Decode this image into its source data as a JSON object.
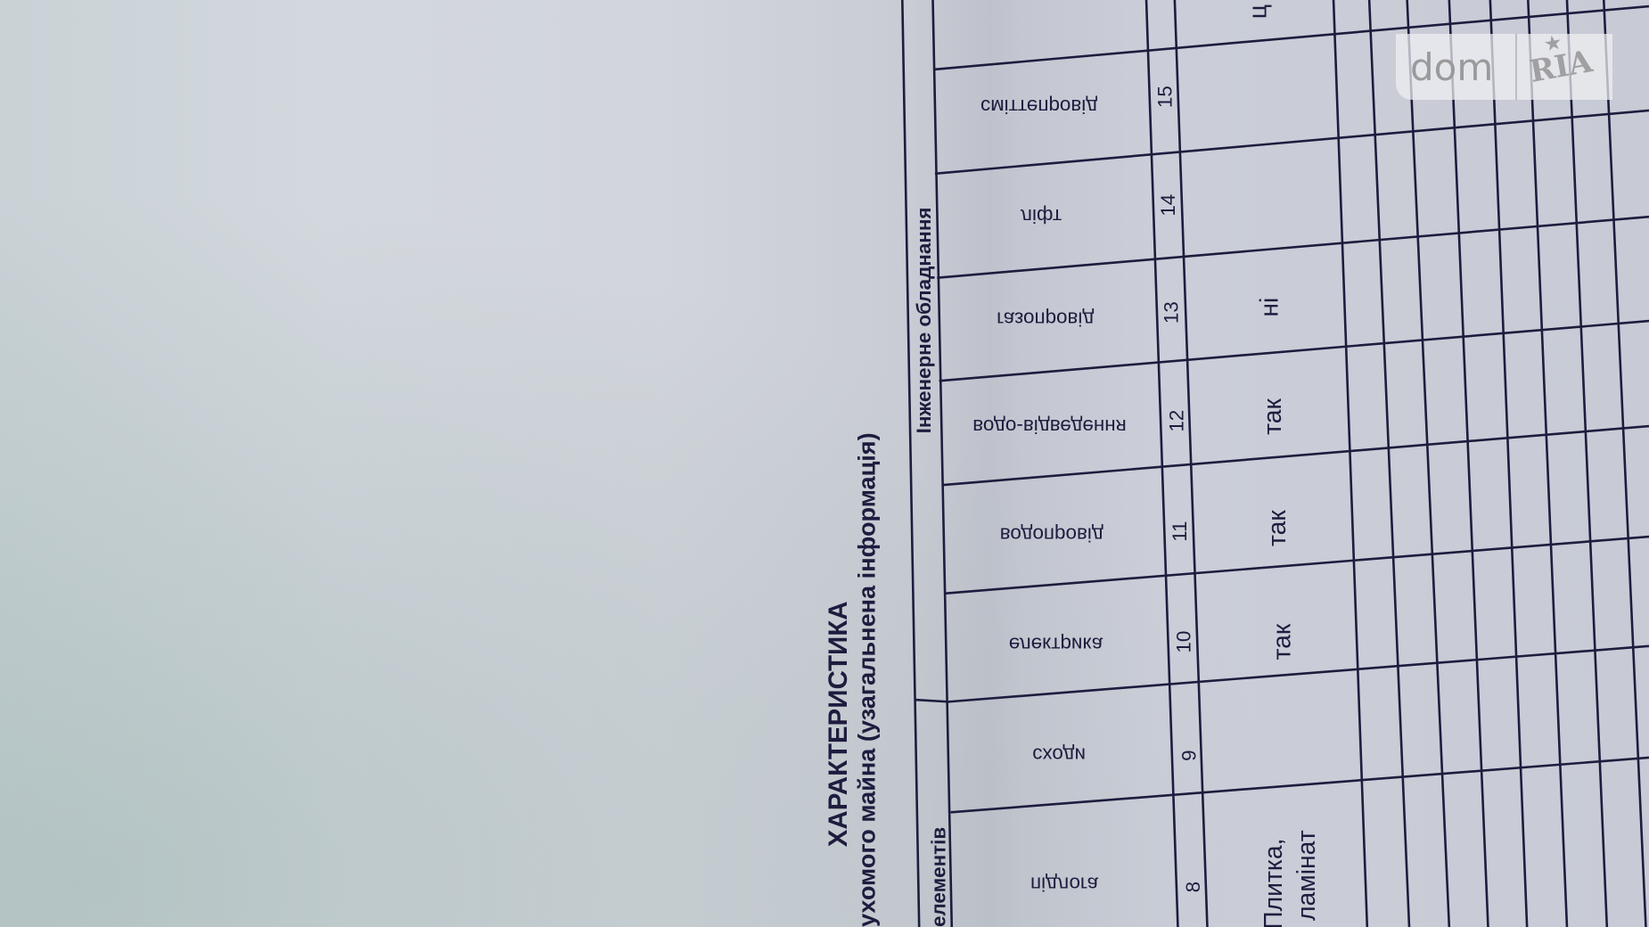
{
  "document": {
    "title": "ХАРАКТЕРИСТИКА",
    "subtitle": "ухомого майна (узагальнена інформація)",
    "group_headers": {
      "engineering": "Інженерне обладнання",
      "elements": "елементів"
    },
    "columns": [
      {
        "number": "8",
        "header": "підлога",
        "value": [
          "Плитка,",
          "ламінат"
        ]
      },
      {
        "number": "9",
        "header": "сходи",
        "value": []
      },
      {
        "number": "10",
        "header": "електрика",
        "value": [
          "так"
        ]
      },
      {
        "number": "11",
        "header": "водопровід",
        "value": [
          "так"
        ]
      },
      {
        "number": "12",
        "header": "водо-відведення",
        "value": [
          "так"
        ]
      },
      {
        "number": "13",
        "header": "газопровід",
        "value": [
          "ні"
        ]
      },
      {
        "number": "14",
        "header": "ліфт",
        "value": []
      },
      {
        "number": "15",
        "header": "сміттепровід",
        "value": []
      }
    ],
    "partial_text": "ц"
  },
  "watermark": {
    "brand_left": "dom",
    "brand_right": "RIA",
    "icon": "star-icon"
  },
  "colors": {
    "ink": "#1e1c3e",
    "paper": "#c8cbd5"
  }
}
